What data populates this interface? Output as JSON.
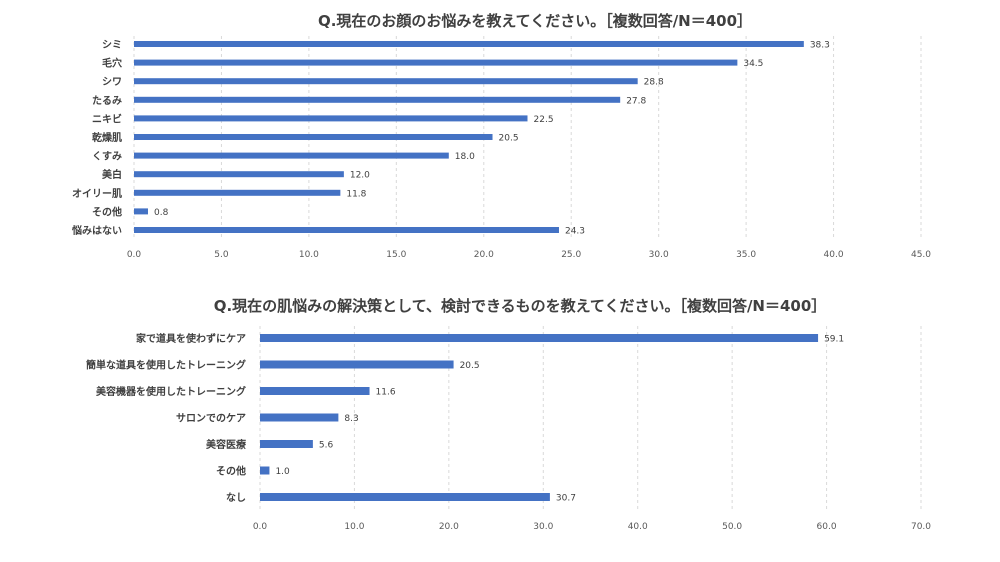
{
  "chart_data": [
    {
      "type": "bar",
      "orientation": "horizontal",
      "title": "Q.現在のお顔のお悩みを教えてください。［複数回答/N＝400］",
      "categories": [
        "シミ",
        "毛穴",
        "シワ",
        "たるみ",
        "ニキビ",
        "乾燥肌",
        "くすみ",
        "美白",
        "オイリー肌",
        "その他",
        "悩みはない"
      ],
      "values": [
        38.3,
        34.5,
        28.8,
        27.8,
        22.5,
        20.5,
        18.0,
        12.0,
        11.8,
        0.8,
        24.3
      ],
      "value_labels": [
        "38.3",
        "34.5",
        "28.8",
        "27.8",
        "22.5",
        "20.5",
        "18.0",
        "12.0",
        "11.8",
        "0.8",
        "24.3"
      ],
      "xlim": [
        0,
        45
      ],
      "ticks": [
        "0.0",
        "5.0",
        "10.0",
        "15.0",
        "20.0",
        "25.0",
        "30.0",
        "35.0",
        "40.0",
        "45.0"
      ],
      "grid": true,
      "color": "#4472c4"
    },
    {
      "type": "bar",
      "orientation": "horizontal",
      "title": "Q.現在の肌悩みの解決策として、検討できるものを教えてください。［複数回答/N＝400］",
      "categories": [
        "家で道具を使わずにケア",
        "簡単な道具を使用したトレーニング",
        "美容機器を使用したトレーニング",
        "サロンでのケア",
        "美容医療",
        "その他",
        "なし"
      ],
      "values": [
        59.1,
        20.5,
        11.6,
        8.3,
        5.6,
        1.0,
        30.7
      ],
      "value_labels": [
        "59.1",
        "20.5",
        "11.6",
        "8.3",
        "5.6",
        "1.0",
        "30.7"
      ],
      "xlim": [
        0,
        70
      ],
      "ticks": [
        "0.0",
        "10.0",
        "20.0",
        "30.0",
        "40.0",
        "50.0",
        "60.0",
        "70.0"
      ],
      "grid": true,
      "color": "#4472c4"
    }
  ]
}
